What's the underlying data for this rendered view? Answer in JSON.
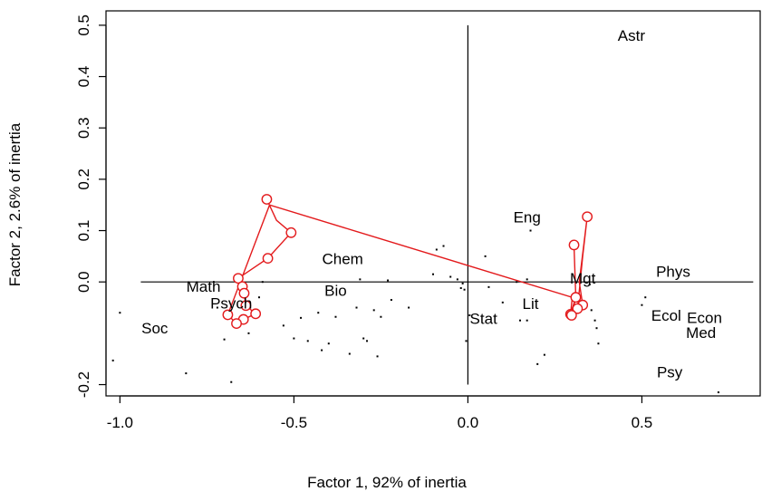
{
  "chart_data": {
    "type": "scatter",
    "title": "",
    "xlabel": "Factor 1, 92% of inertia",
    "ylabel": "Factor 2, 2.6% of inertia",
    "xlim": [
      -1.04,
      0.84
    ],
    "ylim": [
      -0.222,
      0.528
    ],
    "x_ticks": [
      {
        "value": -1.0,
        "label": "-1.0"
      },
      {
        "value": -0.5,
        "label": "-0.5"
      },
      {
        "value": 0.0,
        "label": "0.0"
      },
      {
        "value": 0.5,
        "label": "0.5"
      }
    ],
    "y_ticks": [
      {
        "value": -0.2,
        "label": "-0.2"
      },
      {
        "value": 0.0,
        "label": "0.0"
      },
      {
        "value": 0.1,
        "label": "0.1"
      },
      {
        "value": 0.2,
        "label": "0.2"
      },
      {
        "value": 0.3,
        "label": "0.3"
      },
      {
        "value": 0.4,
        "label": "0.4"
      },
      {
        "value": 0.5,
        "label": "0.5"
      }
    ],
    "grid": false,
    "reference_lines": {
      "x": 0.0,
      "y": 0.0
    },
    "colors": {
      "path": "#e31a1c",
      "points": "#000000"
    },
    "labels": [
      {
        "text": "Astr",
        "x": 0.47,
        "y": 0.478
      },
      {
        "text": "Eng",
        "x": 0.17,
        "y": 0.124
      },
      {
        "text": "Phys",
        "x": 0.59,
        "y": 0.018
      },
      {
        "text": "Mgt",
        "x": 0.33,
        "y": 0.005
      },
      {
        "text": "Chem",
        "x": -0.36,
        "y": 0.043
      },
      {
        "text": "Math",
        "x": -0.76,
        "y": -0.011
      },
      {
        "text": "Bio",
        "x": -0.38,
        "y": -0.019
      },
      {
        "text": "Psych",
        "x": -0.68,
        "y": -0.044
      },
      {
        "text": "Lit",
        "x": 0.18,
        "y": -0.045
      },
      {
        "text": "Stat",
        "x": 0.045,
        "y": -0.074
      },
      {
        "text": "Soc",
        "x": -0.9,
        "y": -0.092
      },
      {
        "text": "Ecol",
        "x": 0.57,
        "y": -0.068
      },
      {
        "text": "Econ",
        "x": 0.68,
        "y": -0.072
      },
      {
        "text": "Med",
        "x": 0.67,
        "y": -0.101
      },
      {
        "text": "Psy",
        "x": 0.58,
        "y": -0.178
      }
    ],
    "path_points": [
      {
        "x": -0.578,
        "y": 0.161
      },
      {
        "x": -0.55,
        "y": 0.12
      },
      {
        "x": -0.508,
        "y": 0.096
      },
      {
        "x": -0.575,
        "y": 0.046
      },
      {
        "x": -0.66,
        "y": 0.007
      },
      {
        "x": -0.648,
        "y": -0.009
      },
      {
        "x": -0.643,
        "y": -0.022
      },
      {
        "x": -0.638,
        "y": -0.046
      },
      {
        "x": -0.61,
        "y": -0.062
      },
      {
        "x": -0.645,
        "y": -0.073
      },
      {
        "x": -0.665,
        "y": -0.081
      },
      {
        "x": -0.69,
        "y": -0.064
      },
      {
        "x": -0.57,
        "y": 0.15
      },
      {
        "x": 0.3,
        "y": -0.03
      },
      {
        "x": 0.295,
        "y": -0.063
      },
      {
        "x": 0.31,
        "y": -0.03
      },
      {
        "x": 0.305,
        "y": 0.072
      },
      {
        "x": 0.31,
        "y": -0.03
      },
      {
        "x": 0.298,
        "y": -0.065
      },
      {
        "x": 0.315,
        "y": -0.052
      },
      {
        "x": 0.33,
        "y": 0.05
      },
      {
        "x": 0.343,
        "y": 0.127
      },
      {
        "x": 0.32,
        "y": 0.0
      },
      {
        "x": 0.33,
        "y": -0.045
      }
    ],
    "markers": [
      {
        "x": -0.578,
        "y": 0.161
      },
      {
        "x": -0.508,
        "y": 0.096
      },
      {
        "x": -0.575,
        "y": 0.046
      },
      {
        "x": -0.66,
        "y": 0.007
      },
      {
        "x": -0.648,
        "y": -0.009
      },
      {
        "x": -0.643,
        "y": -0.022
      },
      {
        "x": -0.638,
        "y": -0.046
      },
      {
        "x": -0.61,
        "y": -0.062
      },
      {
        "x": -0.645,
        "y": -0.073
      },
      {
        "x": -0.665,
        "y": -0.081
      },
      {
        "x": -0.69,
        "y": -0.064
      },
      {
        "x": 0.343,
        "y": 0.127
      },
      {
        "x": 0.305,
        "y": 0.072
      },
      {
        "x": 0.33,
        "y": -0.045
      },
      {
        "x": 0.315,
        "y": -0.052
      },
      {
        "x": 0.295,
        "y": -0.063
      },
      {
        "x": 0.298,
        "y": -0.065
      },
      {
        "x": 0.31,
        "y": -0.03
      }
    ],
    "dots": [
      [
        -1.0,
        -0.06
      ],
      [
        -1.02,
        -0.153
      ],
      [
        -0.81,
        -0.178
      ],
      [
        -0.68,
        -0.195
      ],
      [
        -0.7,
        -0.112
      ],
      [
        -0.72,
        -0.05
      ],
      [
        -0.63,
        -0.1
      ],
      [
        -0.6,
        -0.03
      ],
      [
        -0.59,
        0.0
      ],
      [
        -0.53,
        -0.085
      ],
      [
        -0.5,
        -0.11
      ],
      [
        -0.48,
        -0.07
      ],
      [
        -0.46,
        -0.115
      ],
      [
        -0.43,
        -0.06
      ],
      [
        -0.42,
        -0.133
      ],
      [
        -0.4,
        -0.12
      ],
      [
        -0.38,
        -0.068
      ],
      [
        -0.34,
        -0.14
      ],
      [
        -0.3,
        -0.11
      ],
      [
        -0.31,
        0.005
      ],
      [
        -0.29,
        -0.115
      ],
      [
        -0.27,
        -0.055
      ],
      [
        -0.26,
        -0.145
      ],
      [
        -0.25,
        -0.068
      ],
      [
        -0.23,
        0.003
      ],
      [
        -0.22,
        -0.035
      ],
      [
        -0.17,
        -0.05
      ],
      [
        -0.32,
        -0.05
      ],
      [
        -0.09,
        0.063
      ],
      [
        -0.07,
        0.07
      ],
      [
        -0.05,
        0.01
      ],
      [
        -0.03,
        0.005
      ],
      [
        -0.02,
        -0.012
      ],
      [
        -0.015,
        -0.003
      ],
      [
        -0.01,
        -0.015
      ],
      [
        0.005,
        -0.065
      ],
      [
        -0.005,
        -0.115
      ],
      [
        0.05,
        0.05
      ],
      [
        0.1,
        -0.04
      ],
      [
        0.14,
        0.0
      ],
      [
        0.17,
        0.005
      ],
      [
        0.2,
        -0.16
      ],
      [
        0.22,
        -0.142
      ],
      [
        0.15,
        -0.075
      ],
      [
        0.17,
        -0.075
      ],
      [
        0.18,
        0.1
      ],
      [
        0.35,
        -0.005
      ],
      [
        0.355,
        -0.055
      ],
      [
        0.365,
        -0.075
      ],
      [
        0.375,
        -0.12
      ],
      [
        0.37,
        -0.09
      ],
      [
        0.51,
        -0.03
      ],
      [
        0.5,
        -0.045
      ],
      [
        0.72,
        -0.215
      ],
      [
        -0.1,
        0.015
      ],
      [
        0.06,
        -0.01
      ]
    ]
  }
}
